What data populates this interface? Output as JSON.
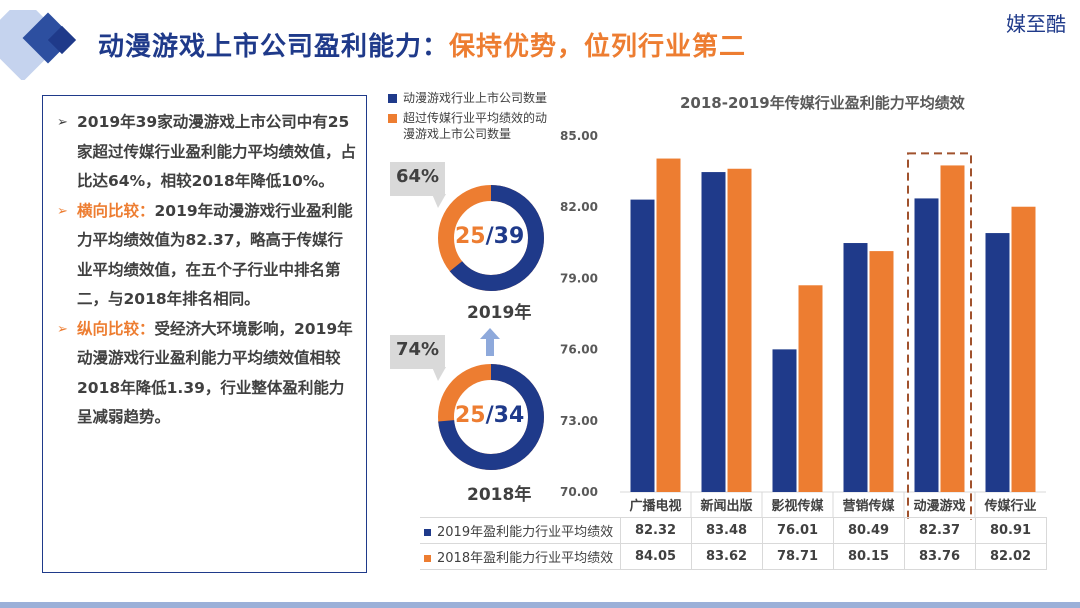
{
  "brand": "媒至酷",
  "title": {
    "main": "动漫游戏上市公司盈利能力：",
    "highlight": "保持优势，位列行业第二"
  },
  "left_panel": {
    "p1": "2019年39家动漫游戏上市公司中有25家超过传媒行业盈利能力平均绩效值，占比达64%，相较2018年降低10%。",
    "p2_label": "横向比较：",
    "p2": "2019年动漫游戏行业盈利能力平均绩效值为82.37，略高于传媒行业平均绩效值，在五个子行业中排名第二，与2018年排名相同。",
    "p3_label": "纵向比较：",
    "p3": "受经济大环境影响，2019年动漫游戏行业盈利能力平均绩效值相较2018年降低1.39，行业整体盈利能力呈减弱趋势。"
  },
  "donut_legend": {
    "blue": "动漫游戏行业上市公司数量",
    "orange_line1": "超过传媒行业平均绩效的动",
    "orange_line2": "漫游戏上市公司数量"
  },
  "donuts": [
    {
      "year": "2019年",
      "pct": "64%",
      "part": "25",
      "slash": "/",
      "total": "39",
      "ratio": 0.641
    },
    {
      "year": "2018年",
      "pct": "74%",
      "part": "25",
      "slash": "/",
      "total": "34",
      "ratio": 0.735
    }
  ],
  "colors": {
    "blue": "#1f3a8a",
    "orange": "#ed7d31",
    "title_blue": "#1f3a8a"
  },
  "chart_data": {
    "type": "bar",
    "title": "2018-2019年传媒行业盈利能力平均绩效",
    "categories": [
      "广播电视",
      "新闻出版",
      "影视传媒",
      "营销传媒",
      "动漫游戏",
      "传媒行业"
    ],
    "series": [
      {
        "name": "2019年盈利能力行业平均绩效",
        "values": [
          82.32,
          83.48,
          76.01,
          80.49,
          82.37,
          80.91
        ],
        "display": [
          "82.32",
          "83.48",
          "76.01",
          "80.49",
          "82.37",
          "80.91"
        ]
      },
      {
        "name": "2018年盈利能力行业平均绩效",
        "values": [
          84.05,
          83.62,
          78.71,
          80.15,
          83.76,
          82.02
        ],
        "display": [
          "84.05",
          "83.62",
          "78.71",
          "80.15",
          "83.76",
          "82.02"
        ]
      }
    ],
    "ylim": [
      70,
      85
    ],
    "yticks": [
      "70.00",
      "73.00",
      "76.00",
      "79.00",
      "82.00",
      "85.00"
    ],
    "highlight_category": "动漫游戏"
  }
}
